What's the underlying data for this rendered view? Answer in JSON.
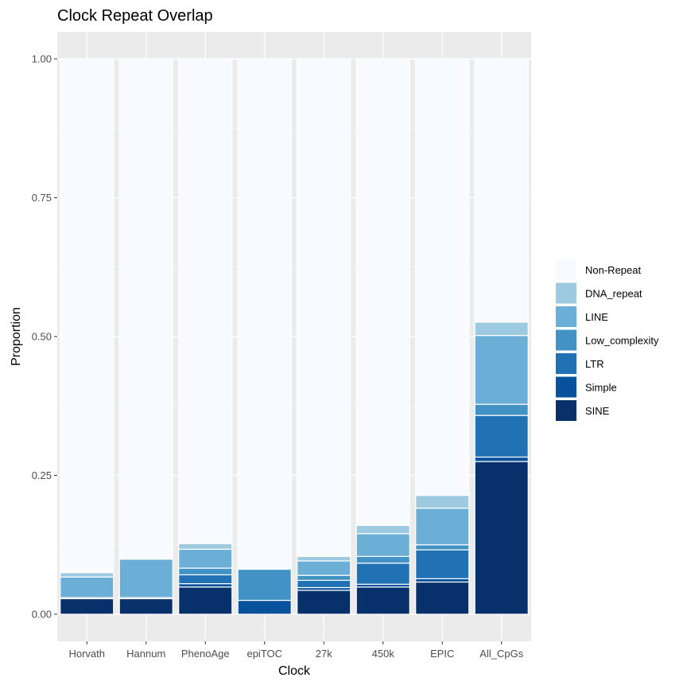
{
  "chart_data": {
    "type": "bar",
    "stacked": true,
    "title": "Clock Repeat Overlap",
    "xlabel": "Clock",
    "ylabel": "Proportion",
    "ylim": [
      0,
      1
    ],
    "yticks": [
      "0.00",
      "0.25",
      "0.50",
      "0.75",
      "1.00"
    ],
    "ytick_values": [
      0,
      0.25,
      0.5,
      0.75,
      1.0
    ],
    "categories": [
      "Horvath",
      "Hannum",
      "PhenoAge",
      "epiTOC",
      "27k",
      "450k",
      "EPIC",
      "All_CpGs"
    ],
    "legend_position": "right",
    "grid": true,
    "series": [
      {
        "name": "SINE",
        "color": "#08306b",
        "values": [
          0.028,
          0.028,
          0.049,
          0.0,
          0.043,
          0.049,
          0.058,
          0.275
        ]
      },
      {
        "name": "Simple",
        "color": "#08519c",
        "values": [
          0.002,
          0.002,
          0.006,
          0.025,
          0.005,
          0.005,
          0.006,
          0.008
        ]
      },
      {
        "name": "LTR",
        "color": "#2171b5",
        "values": [
          0.0,
          0.0,
          0.016,
          0.0,
          0.013,
          0.038,
          0.052,
          0.075
        ]
      },
      {
        "name": "Low_complexity",
        "color": "#4292c6",
        "values": [
          0.0,
          0.0,
          0.012,
          0.056,
          0.009,
          0.012,
          0.009,
          0.02
        ]
      },
      {
        "name": "LINE",
        "color": "#6baed6",
        "values": [
          0.037,
          0.069,
          0.034,
          0.0,
          0.026,
          0.041,
          0.066,
          0.124
        ]
      },
      {
        "name": "DNA_repeat",
        "color": "#9ecae1",
        "values": [
          0.008,
          0.001,
          0.01,
          0.0,
          0.008,
          0.015,
          0.023,
          0.024
        ]
      },
      {
        "name": "Non-Repeat",
        "color": "#f7fbff",
        "values": [
          0.925,
          0.9,
          0.873,
          0.919,
          0.896,
          0.84,
          0.786,
          0.474
        ]
      }
    ],
    "legend_order": [
      "Non-Repeat",
      "DNA_repeat",
      "LINE",
      "Low_complexity",
      "LTR",
      "Simple",
      "SINE"
    ]
  }
}
